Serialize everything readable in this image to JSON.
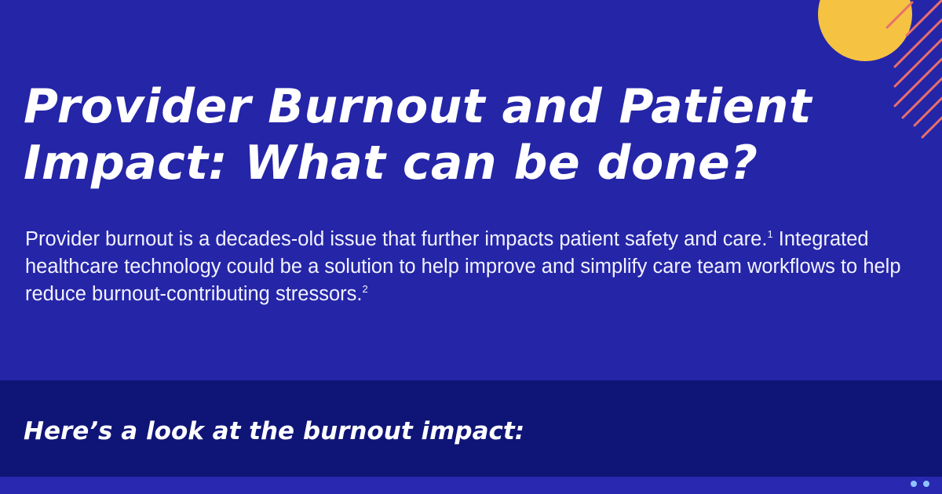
{
  "hero": {
    "title": "Provider Burnout and Patient Impact: What can be done?",
    "intro_text": "Provider burnout is a decades-old issue that further impacts patient safety and care.",
    "intro_ref_1": "1",
    "intro_text_2": " Integrated healthcare technology could be a solution to help improve and simplify care team workflows to help reduce burnout-contributing stressors.",
    "intro_ref_2": "2"
  },
  "band": {
    "heading": "Here’s a look at the burnout impact:"
  },
  "colors": {
    "background": "#2525a8",
    "band": "#0f1577",
    "sun": "#f5c242",
    "stripes": "#e8706a",
    "dots": "#8fc3ff"
  }
}
